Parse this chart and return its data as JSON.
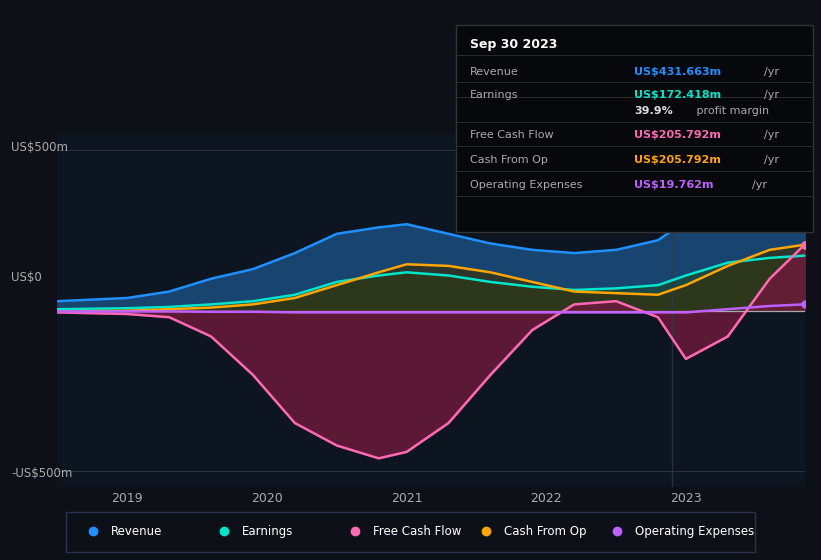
{
  "bg_color": "#0d1117",
  "plot_bg_color": "#0d1520",
  "ylabel_top": "US$500m",
  "ylabel_zero": "US$0",
  "ylabel_bottom": "-US$500m",
  "xlabels": [
    "2019",
    "2020",
    "2021",
    "2022",
    "2023"
  ],
  "ylim": [
    -550,
    550
  ],
  "series": {
    "Revenue": {
      "color": "#1e90ff",
      "fill_color": "#1a4a7a",
      "x": [
        2018.5,
        2019.0,
        2019.3,
        2019.6,
        2019.9,
        2020.2,
        2020.5,
        2020.8,
        2021.0,
        2021.3,
        2021.6,
        2021.9,
        2022.2,
        2022.5,
        2022.8,
        2023.0,
        2023.3,
        2023.6,
        2023.85
      ],
      "y": [
        30,
        40,
        60,
        100,
        130,
        180,
        240,
        260,
        270,
        240,
        210,
        190,
        180,
        190,
        220,
        280,
        360,
        420,
        432
      ]
    },
    "Earnings": {
      "color": "#00e5cc",
      "fill_color": "#1a4a3a",
      "x": [
        2018.5,
        2019.0,
        2019.3,
        2019.6,
        2019.9,
        2020.2,
        2020.5,
        2020.8,
        2021.0,
        2021.3,
        2021.6,
        2021.9,
        2022.2,
        2022.5,
        2022.8,
        2023.0,
        2023.3,
        2023.6,
        2023.85
      ],
      "y": [
        5,
        8,
        12,
        20,
        30,
        50,
        90,
        110,
        120,
        110,
        90,
        75,
        65,
        70,
        80,
        110,
        150,
        165,
        172
      ]
    },
    "Free Cash Flow": {
      "color": "#ff69b4",
      "fill_color": "#6b1a3a",
      "x": [
        2018.5,
        2019.0,
        2019.3,
        2019.6,
        2019.9,
        2020.2,
        2020.5,
        2020.8,
        2021.0,
        2021.3,
        2021.6,
        2021.9,
        2022.2,
        2022.5,
        2022.8,
        2023.0,
        2023.3,
        2023.6,
        2023.85
      ],
      "y": [
        -5,
        -10,
        -20,
        -80,
        -200,
        -350,
        -420,
        -460,
        -440,
        -350,
        -200,
        -60,
        20,
        30,
        -20,
        -150,
        -80,
        100,
        206
      ]
    },
    "Cash From Op": {
      "color": "#ffa500",
      "fill_color": "#3a2d00",
      "x": [
        2018.5,
        2019.0,
        2019.3,
        2019.6,
        2019.9,
        2020.2,
        2020.5,
        2020.8,
        2021.0,
        2021.3,
        2021.6,
        2021.9,
        2022.2,
        2022.5,
        2022.8,
        2023.0,
        2023.3,
        2023.6,
        2023.85
      ],
      "y": [
        -2,
        0,
        5,
        10,
        20,
        40,
        80,
        120,
        145,
        140,
        120,
        90,
        60,
        55,
        50,
        80,
        140,
        190,
        206
      ]
    },
    "Operating Expenses": {
      "color": "#bf5fff",
      "x": [
        2018.5,
        2019.0,
        2019.3,
        2019.6,
        2019.9,
        2020.2,
        2020.5,
        2020.8,
        2021.0,
        2021.3,
        2021.6,
        2021.9,
        2022.2,
        2022.5,
        2022.8,
        2023.0,
        2023.3,
        2023.6,
        2023.85
      ],
      "y": [
        -2,
        -2,
        -2,
        -3,
        -3,
        -5,
        -5,
        -5,
        -5,
        -5,
        -5,
        -5,
        -5,
        -5,
        -5,
        -5,
        5,
        15,
        20
      ]
    }
  },
  "tooltip": {
    "title": "Sep 30 2023",
    "rows": [
      {
        "label": "Revenue",
        "value": "US$431.663m",
        "unit": "/yr",
        "color": "#1e90ff"
      },
      {
        "label": "Earnings",
        "value": "US$172.418m",
        "unit": "/yr",
        "color": "#00e5cc"
      },
      {
        "label": "",
        "value": "39.9%",
        "unit": " profit margin",
        "color": "#dddddd"
      },
      {
        "label": "Free Cash Flow",
        "value": "US$205.792m",
        "unit": "/yr",
        "color": "#ff69b4"
      },
      {
        "label": "Cash From Op",
        "value": "US$205.792m",
        "unit": "/yr",
        "color": "#ffa500"
      },
      {
        "label": "Operating Expenses",
        "value": "US$19.762m",
        "unit": "/yr",
        "color": "#bf5fff"
      }
    ]
  },
  "legend": [
    {
      "label": "Revenue",
      "color": "#1e90ff"
    },
    {
      "label": "Earnings",
      "color": "#00e5cc"
    },
    {
      "label": "Free Cash Flow",
      "color": "#ff69b4"
    },
    {
      "label": "Cash From Op",
      "color": "#ffa500"
    },
    {
      "label": "Operating Expenses",
      "color": "#bf5fff"
    }
  ]
}
